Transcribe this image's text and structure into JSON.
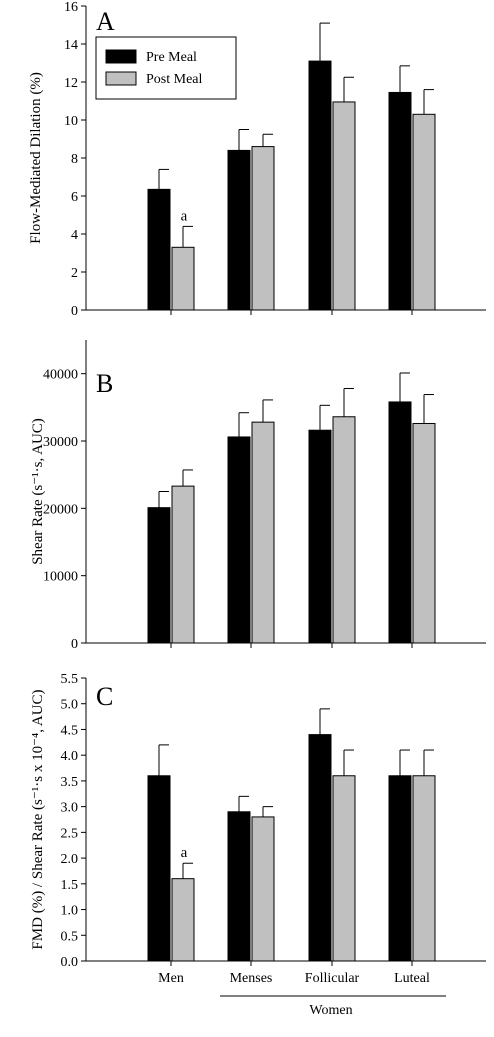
{
  "legend": {
    "pre": "Pre Meal",
    "post": "Post Meal"
  },
  "colors": {
    "pre": "#000000",
    "post": "#c0c0c0",
    "stroke": "#000000"
  },
  "x_axis": {
    "categories": [
      "Men",
      "Menses",
      "Follicular",
      "Luteal"
    ],
    "group_label": "Women",
    "group_members": [
      "Menses",
      "Follicular",
      "Luteal"
    ]
  },
  "chart_data": [
    {
      "type": "bar",
      "panel": "A",
      "ylabel": "Flow-Mediated Dilation (%)",
      "ylim": [
        0,
        16
      ],
      "yticks": [
        0,
        2,
        4,
        6,
        8,
        10,
        12,
        14,
        16
      ],
      "categories": [
        "Men",
        "Menses",
        "Follicular",
        "Luteal"
      ],
      "series": [
        {
          "name": "Pre Meal",
          "values": [
            6.35,
            8.4,
            13.1,
            11.45
          ],
          "errors": [
            1.05,
            1.1,
            2.0,
            1.4
          ]
        },
        {
          "name": "Post Meal",
          "values": [
            3.3,
            8.6,
            10.95,
            10.3
          ],
          "errors": [
            1.1,
            0.65,
            1.3,
            1.3
          ]
        }
      ],
      "annotations": [
        {
          "text": "a",
          "category": "Men",
          "series": "Post Meal"
        }
      ],
      "legend_position": "top-left"
    },
    {
      "type": "bar",
      "panel": "B",
      "ylabel": "Shear Rate (s⁻¹·s, AUC)",
      "ylim": [
        0,
        45000
      ],
      "yticks": [
        0,
        10000,
        20000,
        30000,
        40000
      ],
      "categories": [
        "Men",
        "Menses",
        "Follicular",
        "Luteal"
      ],
      "series": [
        {
          "name": "Pre Meal",
          "values": [
            20100,
            30600,
            31600,
            35800
          ],
          "errors": [
            2400,
            3600,
            3700,
            4300
          ]
        },
        {
          "name": "Post Meal",
          "values": [
            23300,
            32800,
            33600,
            32600
          ],
          "errors": [
            2400,
            3300,
            4200,
            4300
          ]
        }
      ],
      "annotations": []
    },
    {
      "type": "bar",
      "panel": "C",
      "ylabel": "FMD (%) / Shear Rate (s⁻¹·s x 10⁻⁴, AUC)",
      "ylim": [
        0,
        5.5
      ],
      "yticks": [
        0.0,
        0.5,
        1.0,
        1.5,
        2.0,
        2.5,
        3.0,
        3.5,
        4.0,
        4.5,
        5.0,
        5.5
      ],
      "categories": [
        "Men",
        "Menses",
        "Follicular",
        "Luteal"
      ],
      "series": [
        {
          "name": "Pre Meal",
          "values": [
            3.6,
            2.9,
            4.4,
            3.6
          ],
          "errors": [
            0.6,
            0.3,
            0.5,
            0.5
          ]
        },
        {
          "name": "Post Meal",
          "values": [
            1.6,
            2.8,
            3.6,
            3.6
          ],
          "errors": [
            0.3,
            0.2,
            0.5,
            0.5
          ]
        }
      ],
      "annotations": [
        {
          "text": "a",
          "category": "Men",
          "series": "Post Meal"
        }
      ]
    }
  ]
}
